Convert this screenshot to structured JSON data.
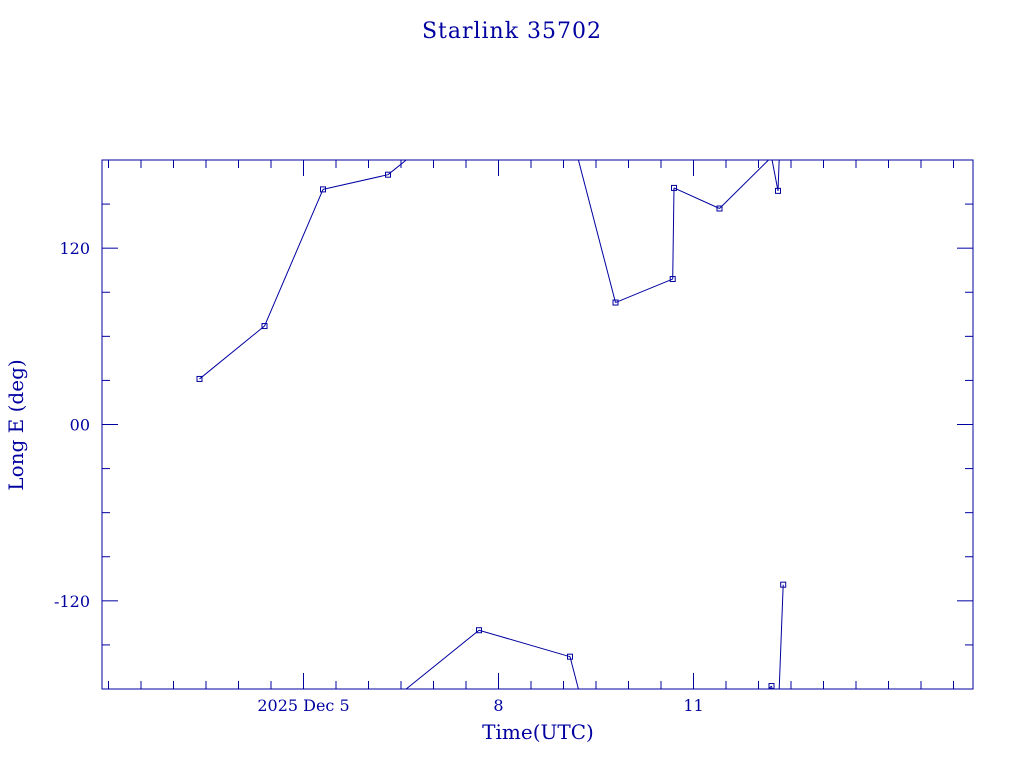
{
  "colors": {
    "ink": "#0000a0",
    "background": "#ffffff"
  },
  "chart_data": {
    "type": "line",
    "title": "Starlink 35702",
    "xlabel": "Time(UTC)",
    "ylabel": "Long E (deg)",
    "grid": false,
    "xlim": [
      1.9,
      15.3
    ],
    "ylim": [
      -180,
      180
    ],
    "wrap_longitude": true,
    "y_ticks": [
      {
        "value": 120,
        "label": "120"
      },
      {
        "value": 0,
        "label": "00"
      },
      {
        "value": -120,
        "label": "-120"
      }
    ],
    "x_ticks": [
      {
        "value": 5,
        "label": "2025 Dec  5"
      },
      {
        "value": 8,
        "label": "8"
      },
      {
        "value": 11,
        "label": "11"
      }
    ],
    "x_minor_step": 0.5,
    "y_minor_step": 30,
    "series": [
      {
        "points": [
          {
            "x": 3.4,
            "y": 31
          },
          {
            "x": 4.4,
            "y": 67
          },
          {
            "x": 5.3,
            "y": 160
          },
          {
            "x": 6.3,
            "y": 170
          },
          {
            "x": 7.7,
            "y": -140
          },
          {
            "x": 9.1,
            "y": -158
          },
          {
            "x": 9.8,
            "y": 83
          },
          {
            "x": 10.68,
            "y": 99
          },
          {
            "x": 10.7,
            "y": 161
          },
          {
            "x": 11.4,
            "y": 147
          },
          {
            "x": 12.2,
            "y": -178
          },
          {
            "x": 12.3,
            "y": 159
          },
          {
            "x": 12.38,
            "y": -109
          }
        ]
      }
    ]
  }
}
